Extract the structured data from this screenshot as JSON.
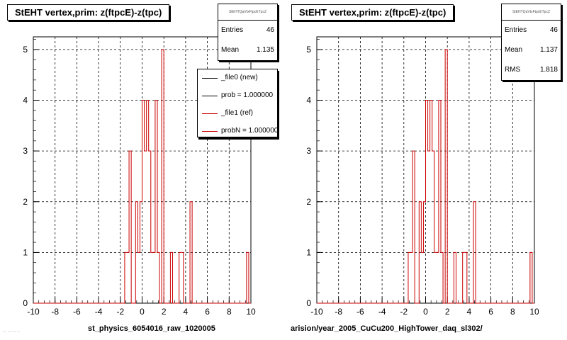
{
  "colors": {
    "ref": "#cc0000",
    "new": "#000000",
    "grid": "#000000"
  },
  "panels": [
    {
      "title": "StEHT  vertex,prim: z(ftpcE)-z(tpc)",
      "stats": {
        "name": "StEHTQaVtxFtpcETpcZ",
        "rows": [
          {
            "label": "Entries",
            "value": "46"
          },
          {
            "label": "Mean",
            "value": "1.135"
          }
        ]
      },
      "legend": [
        {
          "label": "_file0 (new)",
          "color": "#000000"
        },
        {
          "label": "prob = 1.000000",
          "color": "#000000"
        },
        {
          "label": "_file1 (ref)",
          "color": "#cc0000"
        },
        {
          "label": "probN = 1.000000",
          "color": "#cc0000"
        }
      ],
      "footer": "st_physics_6054016_raw_1020005"
    },
    {
      "title": "StEHT  vertex,prim: z(ftpcE)-z(tpc)",
      "stats": {
        "name": "StEHTQaVtxFtpcETpcZ",
        "rows": [
          {
            "label": "Entries",
            "value": "46"
          },
          {
            "label": "Mean",
            "value": "1.137"
          },
          {
            "label": "RMS",
            "value": "1.818"
          }
        ]
      },
      "footer": "arision/year_2005_CuCu200_HighTower_daq_sl302/"
    }
  ],
  "stamp": "... ... ... ...",
  "chart_data": [
    {
      "type": "histogram",
      "title": "StEHT  vertex,prim: z(ftpcE)-z(tpc)",
      "xlim": [
        -10,
        10
      ],
      "ylim": [
        0,
        5.25
      ],
      "xticks": [
        "-10",
        "-8",
        "-6",
        "-4",
        "-2",
        "0",
        "2",
        "4",
        "6",
        "8",
        "10"
      ],
      "yticks": [
        "0",
        "1",
        "2",
        "3",
        "4",
        "5"
      ],
      "grid": true,
      "bin_width": 0.2,
      "series": [
        {
          "name": "_file1 (ref)",
          "bins": [
            {
              "x": -1.6,
              "y": 1
            },
            {
              "x": -1.4,
              "y": 1
            },
            {
              "x": -1.2,
              "y": 3
            },
            {
              "x": -0.6,
              "y": 2
            },
            {
              "x": -0.4,
              "y": 1
            },
            {
              "x": -0.2,
              "y": 2
            },
            {
              "x": 0.0,
              "y": 4
            },
            {
              "x": 0.2,
              "y": 3
            },
            {
              "x": 0.4,
              "y": 4
            },
            {
              "x": 0.6,
              "y": 3
            },
            {
              "x": 0.8,
              "y": 1
            },
            {
              "x": 1.0,
              "y": 1
            },
            {
              "x": 1.2,
              "y": 4
            },
            {
              "x": 1.4,
              "y": 1
            },
            {
              "x": 1.8,
              "y": 5
            },
            {
              "x": 2.6,
              "y": 1
            },
            {
              "x": 3.4,
              "y": 1
            },
            {
              "x": 3.6,
              "y": 1
            },
            {
              "x": 4.4,
              "y": 2
            },
            {
              "x": 9.6,
              "y": 1
            }
          ]
        }
      ]
    },
    {
      "type": "histogram",
      "title": "StEHT  vertex,prim: z(ftpcE)-z(tpc)",
      "xlim": [
        -10,
        10
      ],
      "ylim": [
        0,
        5.25
      ],
      "xticks": [
        "-10",
        "-8",
        "-6",
        "-4",
        "-2",
        "0",
        "2",
        "4",
        "6",
        "8",
        "10"
      ],
      "yticks": [
        "0",
        "1",
        "2",
        "3",
        "4",
        "5"
      ],
      "grid": true,
      "bin_width": 0.2,
      "series": [
        {
          "name": "_file1 (ref)",
          "bins": [
            {
              "x": -1.6,
              "y": 1
            },
            {
              "x": -1.4,
              "y": 1
            },
            {
              "x": -1.2,
              "y": 3
            },
            {
              "x": -0.6,
              "y": 2
            },
            {
              "x": -0.4,
              "y": 1
            },
            {
              "x": -0.2,
              "y": 2
            },
            {
              "x": 0.0,
              "y": 4
            },
            {
              "x": 0.2,
              "y": 3
            },
            {
              "x": 0.4,
              "y": 4
            },
            {
              "x": 0.6,
              "y": 3
            },
            {
              "x": 0.8,
              "y": 1
            },
            {
              "x": 1.0,
              "y": 1
            },
            {
              "x": 1.2,
              "y": 4
            },
            {
              "x": 1.4,
              "y": 1
            },
            {
              "x": 1.8,
              "y": 5
            },
            {
              "x": 2.6,
              "y": 1
            },
            {
              "x": 3.4,
              "y": 1
            },
            {
              "x": 3.6,
              "y": 1
            },
            {
              "x": 4.4,
              "y": 2
            },
            {
              "x": 9.6,
              "y": 1
            }
          ]
        }
      ]
    }
  ]
}
